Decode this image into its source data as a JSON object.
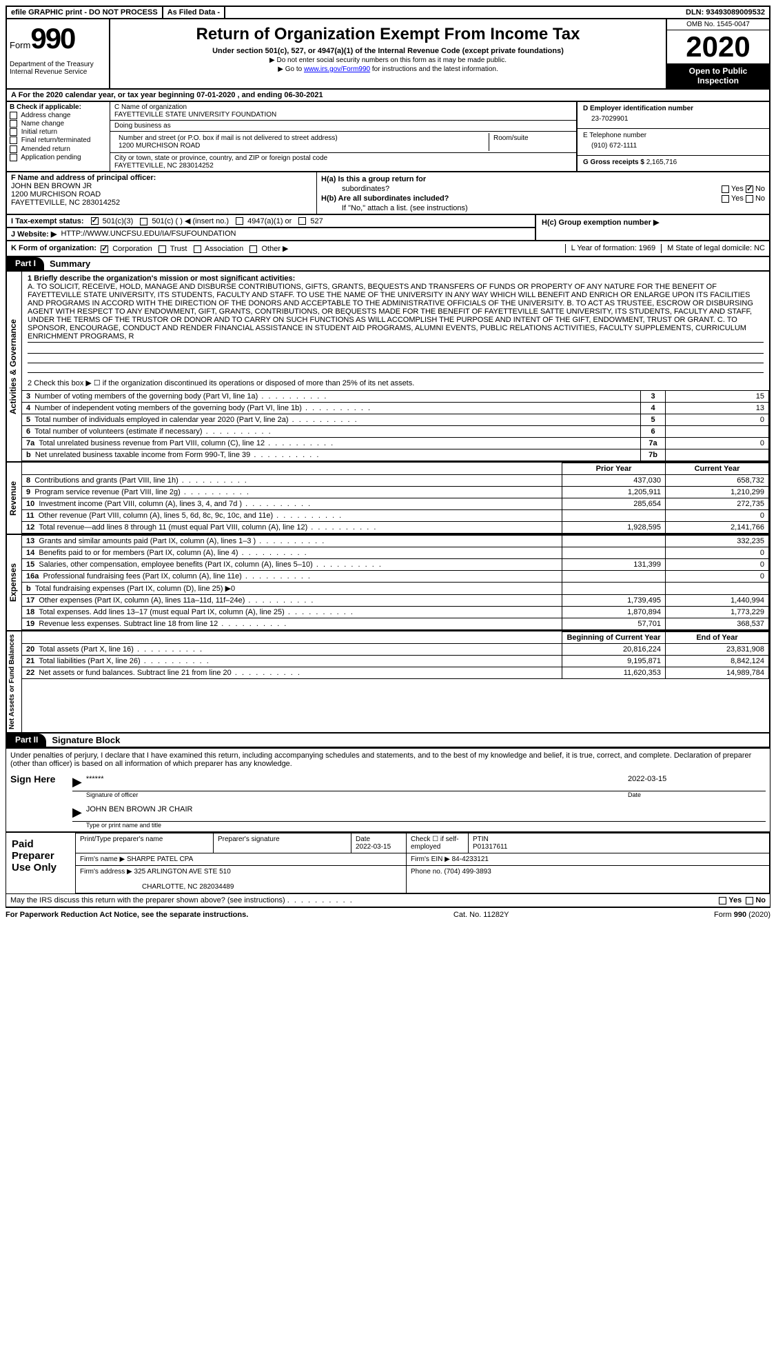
{
  "topbar": {
    "efile": "efile GRAPHIC print - DO NOT PROCESS",
    "asfiled": "As Filed Data -",
    "dln_label": "DLN:",
    "dln": "93493089009532"
  },
  "header": {
    "form_label": "Form",
    "form_num": "990",
    "dept": "Department of the Treasury\nInternal Revenue Service",
    "title": "Return of Organization Exempt From Income Tax",
    "sub": "Under section 501(c), 527, or 4947(a)(1) of the Internal Revenue Code (except private foundations)",
    "note1": "▶ Do not enter social security numbers on this form as it may be made public.",
    "note2_pre": "▶ Go to ",
    "note2_link": "www.irs.gov/Form990",
    "note2_post": " for instructions and the latest information.",
    "omb": "OMB No. 1545-0047",
    "year": "2020",
    "inspect": "Open to Public Inspection"
  },
  "row_a": "A  For the 2020 calendar year, or tax year beginning 07-01-2020   , and ending 06-30-2021",
  "col_b": {
    "label": "B Check if applicable:",
    "opts": [
      "Address change",
      "Name change",
      "Initial return",
      "Final return/terminated",
      "Amended return",
      "Application pending"
    ]
  },
  "col_c": {
    "name_label": "C Name of organization",
    "name": "FAYETTEVILLE STATE UNIVERSITY FOUNDATION",
    "dba_label": "Doing business as",
    "addr_label": "Number and street (or P.O. box if mail is not delivered to street address)",
    "room_label": "Room/suite",
    "addr": "1200 MURCHISON ROAD",
    "city_label": "City or town, state or province, country, and ZIP or foreign postal code",
    "city": "FAYETTEVILLE, NC  283014252"
  },
  "col_d": {
    "d_label": "D Employer identification number",
    "d_val": "23-7029901",
    "e_label": "E Telephone number",
    "e_val": "(910) 672-1111",
    "g_label": "G Gross receipts $",
    "g_val": "2,165,716"
  },
  "officer": {
    "label": "F  Name and address of principal officer:",
    "name": "JOHN BEN BROWN JR",
    "addr1": "1200 MURCHISON ROAD",
    "addr2": "FAYETTEVILLE, NC  283014252"
  },
  "h": {
    "ha": "H(a)  Is this a group return for",
    "ha2": "subordinates?",
    "hb": "H(b)  Are all subordinates included?",
    "hb_note": "If \"No,\" attach a list. (see instructions)",
    "hc": "H(c)  Group exemption number ▶",
    "yes": "Yes",
    "no": "No"
  },
  "row_i": {
    "label": "I  Tax-exempt status:",
    "o1": "501(c)(3)",
    "o2": "501(c) (  ) ◀ (insert no.)",
    "o3": "4947(a)(1) or",
    "o4": "527"
  },
  "row_j": {
    "label": "J  Website: ▶",
    "url": "HTTP://WWW.UNCFSU.EDU/IA/FSUFOUNDATION"
  },
  "row_k": {
    "label": "K Form of organization:",
    "opts": [
      "Corporation",
      "Trust",
      "Association",
      "Other ▶"
    ],
    "lyr": "L Year of formation: 1969",
    "mst": "M State of legal domicile: NC"
  },
  "part1": {
    "tab": "Part I",
    "title": "Summary"
  },
  "vtabs": {
    "ag": "Activities & Governance",
    "rev": "Revenue",
    "exp": "Expenses",
    "na": "Net Assets or Fund Balances"
  },
  "mission": {
    "label": "1  Briefly describe the organization's mission or most significant activities:",
    "text": "A. TO SOLICIT, RECEIVE, HOLD, MANAGE AND DISBURSE CONTRIBUTIONS, GIFTS, GRANTS, BEQUESTS AND TRANSFERS OF FUNDS OR PROPERTY OF ANY NATURE FOR THE BENEFIT OF FAYETTEVILLE STATE UNIVERSITY, ITS STUDENTS, FACULTY AND STAFF. TO USE THE NAME OF THE UNIVERSITY IN ANY WAY WHICH WILL BENEFIT AND ENRICH OR ENLARGE UPON ITS FACILITIES AND PROGRAMS IN ACCORD WITH THE DIRECTION OF THE DONORS AND ACCEPTABLE TO THE ADMINISTRATIVE OFFICIALS OF THE UNIVERSITY. B. TO ACT AS TRUSTEE, ESCROW OR DISBURSING AGENT WITH RESPECT TO ANY ENDOWMENT, GIFT, GRANTS, CONTRIBUTIONS, OR BEQUESTS MADE FOR THE BENEFIT OF FAYETTEVILLE SATTE UNIVERSITY, ITS STUDENTS, FACULTY AND STAFF, UNDER THE TERMS OF THE TRUSTOR OR DONOR AND TO CARRY ON SUCH FUNCTIONS AS WILL ACCOMPLISH THE PURPOSE AND INTENT OF THE GIFT, ENDOWMENT, TRUST OR GRANT. C. TO SPONSOR, ENCOURAGE, CONDUCT AND RENDER FINANCIAL ASSISTANCE IN STUDENT AID PROGRAMS, ALUMNI EVENTS, PUBLIC RELATIONS ACTIVITIES, FACULTY SUPPLEMENTS, CURRICULUM ENRICHMENT PROGRAMS, R"
  },
  "line2": "2   Check this box ▶ ☐ if the organization discontinued its operations or disposed of more than 25% of its net assets.",
  "gov_lines": [
    {
      "n": "3",
      "t": "Number of voting members of the governing body (Part VI, line 1a)",
      "k": "3",
      "v": "15"
    },
    {
      "n": "4",
      "t": "Number of independent voting members of the governing body (Part VI, line 1b)",
      "k": "4",
      "v": "13"
    },
    {
      "n": "5",
      "t": "Total number of individuals employed in calendar year 2020 (Part V, line 2a)",
      "k": "5",
      "v": "0"
    },
    {
      "n": "6",
      "t": "Total number of volunteers (estimate if necessary)",
      "k": "6",
      "v": ""
    },
    {
      "n": "7a",
      "t": "Total unrelated business revenue from Part VIII, column (C), line 12",
      "k": "7a",
      "v": "0"
    },
    {
      "n": "b",
      "t": "Net unrelated business taxable income from Form 990-T, line 39",
      "k": "7b",
      "v": ""
    }
  ],
  "col_hdrs": {
    "prior": "Prior Year",
    "current": "Current Year",
    "boy": "Beginning of Current Year",
    "eoy": "End of Year"
  },
  "rev_lines": [
    {
      "n": "8",
      "t": "Contributions and grants (Part VIII, line 1h)",
      "p": "437,030",
      "c": "658,732"
    },
    {
      "n": "9",
      "t": "Program service revenue (Part VIII, line 2g)",
      "p": "1,205,911",
      "c": "1,210,299"
    },
    {
      "n": "10",
      "t": "Investment income (Part VIII, column (A), lines 3, 4, and 7d )",
      "p": "285,654",
      "c": "272,735"
    },
    {
      "n": "11",
      "t": "Other revenue (Part VIII, column (A), lines 5, 6d, 8c, 9c, 10c, and 11e)",
      "p": "",
      "c": "0"
    },
    {
      "n": "12",
      "t": "Total revenue—add lines 8 through 11 (must equal Part VIII, column (A), line 12)",
      "p": "1,928,595",
      "c": "2,141,766"
    }
  ],
  "exp_lines": [
    {
      "n": "13",
      "t": "Grants and similar amounts paid (Part IX, column (A), lines 1–3 )",
      "p": "",
      "c": "332,235"
    },
    {
      "n": "14",
      "t": "Benefits paid to or for members (Part IX, column (A), line 4)",
      "p": "",
      "c": "0"
    },
    {
      "n": "15",
      "t": "Salaries, other compensation, employee benefits (Part IX, column (A), lines 5–10)",
      "p": "131,399",
      "c": "0"
    },
    {
      "n": "16a",
      "t": "Professional fundraising fees (Part IX, column (A), line 11e)",
      "p": "",
      "c": "0"
    },
    {
      "n": "b",
      "t": "Total fundraising expenses (Part IX, column (D), line 25) ▶0",
      "p": "",
      "c": "",
      "single": true
    },
    {
      "n": "17",
      "t": "Other expenses (Part IX, column (A), lines 11a–11d, 11f–24e)",
      "p": "1,739,495",
      "c": "1,440,994"
    },
    {
      "n": "18",
      "t": "Total expenses. Add lines 13–17 (must equal Part IX, column (A), line 25)",
      "p": "1,870,894",
      "c": "1,773,229"
    },
    {
      "n": "19",
      "t": "Revenue less expenses. Subtract line 18 from line 12",
      "p": "57,701",
      "c": "368,537"
    }
  ],
  "na_lines": [
    {
      "n": "20",
      "t": "Total assets (Part X, line 16)",
      "p": "20,816,224",
      "c": "23,831,908"
    },
    {
      "n": "21",
      "t": "Total liabilities (Part X, line 26)",
      "p": "9,195,871",
      "c": "8,842,124"
    },
    {
      "n": "22",
      "t": "Net assets or fund balances. Subtract line 21 from line 20",
      "p": "11,620,353",
      "c": "14,989,784"
    }
  ],
  "part2": {
    "tab": "Part II",
    "title": "Signature Block"
  },
  "sig": {
    "decl": "Under penalties of perjury, I declare that I have examined this return, including accompanying schedules and statements, and to the best of my knowledge and belief, it is true, correct, and complete. Declaration of preparer (other than officer) is based on all information of which preparer has any knowledge.",
    "sign_here": "Sign Here",
    "stars": "******",
    "sig_officer": "Signature of officer",
    "date": "2022-03-15",
    "date_label": "Date",
    "name": "JOHN BEN BROWN JR CHAIR",
    "name_label": "Type or print name and title"
  },
  "prep": {
    "label": "Paid Preparer Use Only",
    "h1": "Print/Type preparer's name",
    "h2": "Preparer's signature",
    "h3": "Date",
    "h3v": "2022-03-15",
    "h4": "Check ☐ if self-employed",
    "h5": "PTIN",
    "h5v": "P01317611",
    "firm_label": "Firm's name    ▶",
    "firm": "SHARPE PATEL CPA",
    "ein_label": "Firm's EIN ▶",
    "ein": "84-4233121",
    "addr_label": "Firm's address ▶",
    "addr": "325 ARLINGTON AVE STE 510",
    "addr2": "CHARLOTTE, NC  282034489",
    "phone_label": "Phone no.",
    "phone": "(704) 499-3893"
  },
  "discuss": "May the IRS discuss this return with the preparer shown above? (see instructions)",
  "footer": {
    "pra": "For Paperwork Reduction Act Notice, see the separate instructions.",
    "cat": "Cat. No. 11282Y",
    "form": "Form 990 (2020)"
  }
}
